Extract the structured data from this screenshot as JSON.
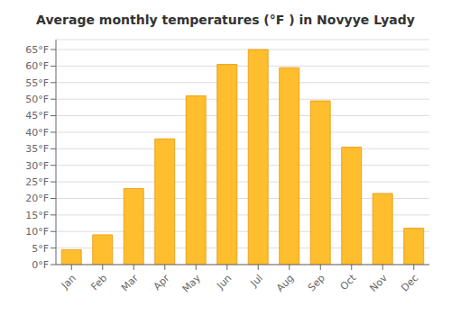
{
  "chart_data": {
    "type": "bar",
    "title": "Average monthly temperatures (°F ) in Novyye Lyady",
    "categories": [
      "Jan",
      "Feb",
      "Mar",
      "Apr",
      "May",
      "Jun",
      "Jul",
      "Aug",
      "Sep",
      "Oct",
      "Nov",
      "Dec"
    ],
    "values": [
      4.5,
      9.0,
      23.0,
      38.0,
      51.0,
      60.5,
      65.0,
      59.5,
      49.5,
      35.5,
      21.5,
      11.0
    ],
    "color": "#FFBE2D",
    "ylim": [
      0,
      68
    ],
    "yticks": [
      {
        "value": 0,
        "label": "0°F"
      },
      {
        "value": 5,
        "label": "5°F"
      },
      {
        "value": 10,
        "label": "10°F"
      },
      {
        "value": 15,
        "label": "15°F"
      },
      {
        "value": 20,
        "label": "20°F"
      },
      {
        "value": 25,
        "label": "25°F"
      },
      {
        "value": 30,
        "label": "30°F"
      },
      {
        "value": 35,
        "label": "35°F"
      },
      {
        "value": 40,
        "label": "40°F"
      },
      {
        "value": 45,
        "label": "45°F"
      },
      {
        "value": 50,
        "label": "50°F"
      },
      {
        "value": 55,
        "label": "55°F"
      },
      {
        "value": 60,
        "label": "60°F"
      },
      {
        "value": 65,
        "label": "65°F"
      }
    ],
    "grid": true
  }
}
